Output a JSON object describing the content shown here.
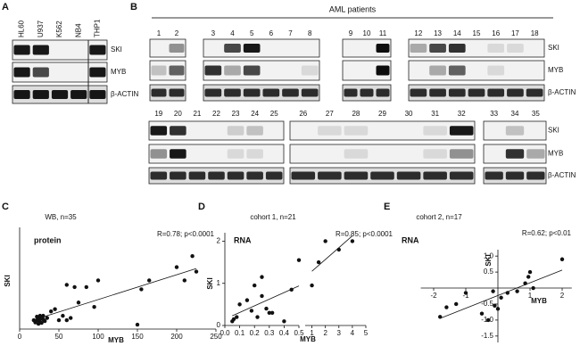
{
  "panel_a": {
    "label": "A",
    "lanes": [
      "HL60",
      "U937",
      "K562",
      "NB4",
      "THP1"
    ],
    "rows": [
      "SKI",
      "MYB",
      "β-ACTIN"
    ]
  },
  "panel_b": {
    "label": "B",
    "title": "AML patients",
    "lanes_top": [
      1,
      2,
      3,
      4,
      5,
      6,
      7,
      8,
      9,
      10,
      11,
      12,
      13,
      14,
      15,
      16,
      17,
      18
    ],
    "lanes_bottom": [
      19,
      20,
      21,
      22,
      23,
      24,
      25,
      26,
      27,
      28,
      29,
      30,
      31,
      32,
      33,
      34,
      35
    ],
    "rows": [
      "SKI",
      "MYB",
      "β-ACTIN"
    ]
  },
  "chart_data": [
    {
      "type": "scatter",
      "panel": "C",
      "title": "WB, n=35",
      "annotation": "R=0.78; p<0.0001",
      "label": "protein",
      "x_label": "MYB",
      "y_label": "SKI",
      "color": "#111111",
      "trendline": true,
      "x": [
        20,
        22,
        24,
        25,
        26,
        27,
        28,
        30,
        22,
        18,
        35,
        40,
        45,
        50,
        55,
        60,
        60,
        65,
        70,
        75,
        85,
        95,
        100,
        150,
        155,
        165,
        200,
        210,
        220,
        225,
        30,
        32,
        24,
        26,
        28
      ],
      "values": [
        15,
        20,
        25,
        18,
        22,
        28,
        14,
        22,
        28,
        20,
        25,
        40,
        45,
        20,
        30,
        20,
        100,
        25,
        95,
        60,
        95,
        50,
        110,
        10,
        90,
        110,
        140,
        110,
        165,
        130,
        30,
        18,
        12,
        30,
        24
      ],
      "xlim": [
        0,
        250
      ],
      "xticks": [
        0,
        50,
        100,
        150,
        200,
        250
      ],
      "ylim": [
        0,
        230
      ]
    },
    {
      "type": "scatter",
      "panel": "D",
      "title": "cohort 1, n=21",
      "annotation": "R=0.85; p<0.0001",
      "label": "RNA",
      "x_label": "MYB",
      "y_label": "SKI",
      "color": "#111111",
      "trendline": true,
      "x": [
        0.05,
        0.06,
        0.08,
        0.1,
        0.15,
        0.18,
        0.2,
        0.22,
        0.25,
        0.25,
        0.28,
        0.3,
        0.32,
        0.4,
        0.45,
        0.5,
        1,
        1.5,
        2,
        3,
        4
      ],
      "values": [
        0.1,
        0.15,
        0.2,
        0.5,
        0.6,
        0.35,
        0.95,
        0.2,
        0.7,
        1.15,
        0.4,
        0.3,
        0.3,
        0.1,
        0.85,
        1.55,
        0.95,
        1.5,
        2.0,
        1.8,
        2.0
      ],
      "xlim": [
        0,
        0.5
      ],
      "xticks": [
        {
          "value": 0,
          "label": "0.0"
        },
        0.1,
        0.2,
        0.3,
        0.4,
        0.5
      ],
      "x2lim": [
        0.5,
        5
      ],
      "x2ticks": [
        1,
        2,
        3,
        4,
        5
      ],
      "ylim": [
        0,
        2.2
      ],
      "yticks": [
        0,
        1,
        2
      ]
    },
    {
      "type": "scatter",
      "panel": "E",
      "title": "cohort 2, n=17",
      "annotation": "R=0.62; p<0.01",
      "label": "RNA",
      "x_label": "MYB",
      "y_label": "SKI",
      "color": "#111111",
      "trendline": true,
      "axes_cross_at_origin": true,
      "x": [
        2,
        1,
        0.95,
        0.85,
        1.1,
        0.6,
        0.3,
        0.1,
        -0.15,
        -0.1,
        -0.5,
        -0.3,
        -1,
        -1.3,
        -1.6,
        -1.8,
        0
      ],
      "values": [
        0.9,
        0.5,
        0.35,
        0.15,
        0.0,
        -0.1,
        -0.15,
        -0.3,
        -0.1,
        -0.55,
        -0.8,
        -1.0,
        -0.15,
        -0.5,
        -0.6,
        -0.9,
        -0.65
      ],
      "xlim": [
        -2.4,
        2.3
      ],
      "xticks": [
        -2,
        -1,
        1,
        2
      ],
      "ylim": [
        -1.7,
        1.2
      ],
      "yticks": [
        {
          "value": 1,
          "label": "1.0"
        },
        0.5,
        -0.5,
        {
          "value": -1,
          "label": "-1.0"
        },
        -1.5
      ]
    }
  ]
}
